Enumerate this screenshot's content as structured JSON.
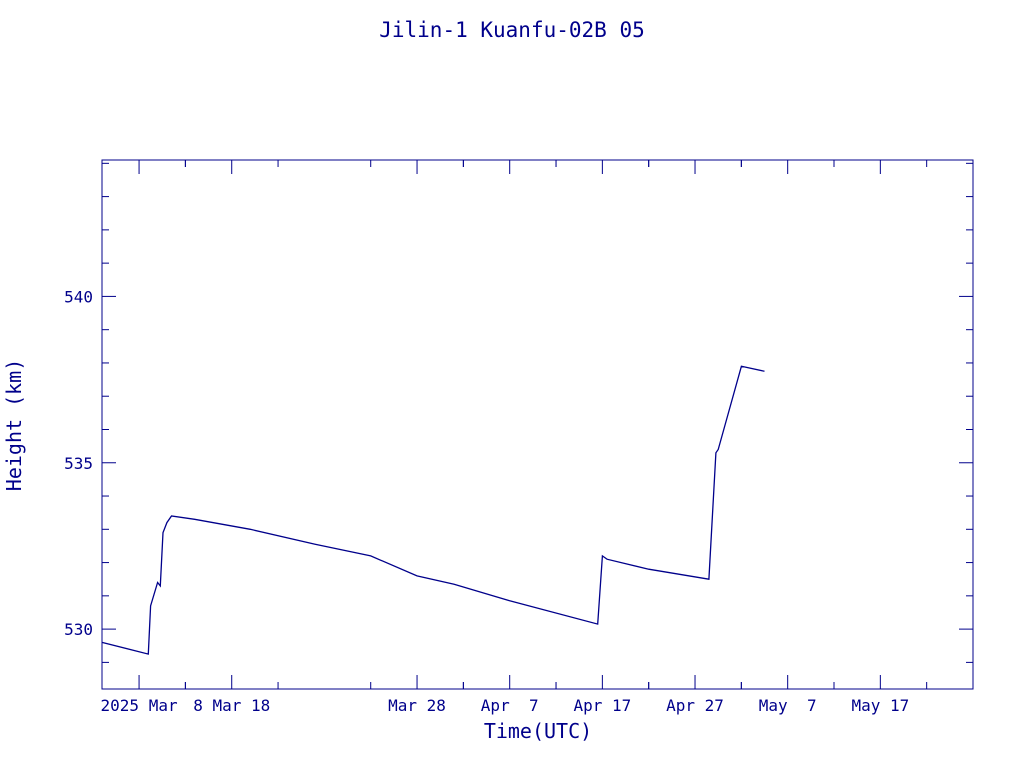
{
  "chart_data": {
    "type": "line",
    "title": "Jilin-1 Kuanfu-02B 05",
    "xlabel": "Time(UTC)",
    "ylabel": "Height (km)",
    "x_range": [
      "2025-02-22",
      "2025-05-27"
    ],
    "ylim": [
      528.2,
      544.1
    ],
    "x_ticks": [
      {
        "date": "2025-02-26",
        "label": "2025 Mar"
      },
      {
        "date": "2025-03-08",
        "label": "8 Mar 18"
      },
      {
        "date": "2025-03-28",
        "label": "Mar 28"
      },
      {
        "date": "2025-04-07",
        "label": "Apr  7"
      },
      {
        "date": "2025-04-17",
        "label": "Apr 17"
      },
      {
        "date": "2025-04-27",
        "label": "Apr 27"
      },
      {
        "date": "2025-05-07",
        "label": "May  7"
      },
      {
        "date": "2025-05-17",
        "label": "May 17"
      }
    ],
    "y_ticks": [
      530,
      535,
      540
    ],
    "grid": false,
    "line_color": "#00008b",
    "series": [
      {
        "values": [
          {
            "x": "2025-02-22T00:00",
            "y": 529.6
          },
          {
            "x": "2025-02-27T00:00",
            "y": 529.25
          },
          {
            "x": "2025-02-27T06:00",
            "y": 530.7
          },
          {
            "x": "2025-02-28T00:00",
            "y": 531.4
          },
          {
            "x": "2025-02-28T07:00",
            "y": 531.3
          },
          {
            "x": "2025-02-28T14:00",
            "y": 532.9
          },
          {
            "x": "2025-03-01T00:00",
            "y": 533.2
          },
          {
            "x": "2025-03-01T12:00",
            "y": 533.4
          },
          {
            "x": "2025-03-04T00:00",
            "y": 533.3
          },
          {
            "x": "2025-03-10T00:00",
            "y": 533.0
          },
          {
            "x": "2025-03-17T00:00",
            "y": 532.55
          },
          {
            "x": "2025-03-23T00:00",
            "y": 532.2
          },
          {
            "x": "2025-03-28T00:00",
            "y": 531.6
          },
          {
            "x": "2025-04-01T00:00",
            "y": 531.35
          },
          {
            "x": "2025-04-07T00:00",
            "y": 530.85
          },
          {
            "x": "2025-04-16T12:00",
            "y": 530.15
          },
          {
            "x": "2025-04-17T00:00",
            "y": 532.2
          },
          {
            "x": "2025-04-17T12:00",
            "y": 532.1
          },
          {
            "x": "2025-04-22T00:00",
            "y": 531.8
          },
          {
            "x": "2025-04-28T12:00",
            "y": 531.5
          },
          {
            "x": "2025-04-29T06:00",
            "y": 535.3
          },
          {
            "x": "2025-04-29T12:00",
            "y": 535.4
          },
          {
            "x": "2025-05-02T00:00",
            "y": 537.9
          },
          {
            "x": "2025-05-04T12:00",
            "y": 537.75
          }
        ]
      }
    ]
  }
}
